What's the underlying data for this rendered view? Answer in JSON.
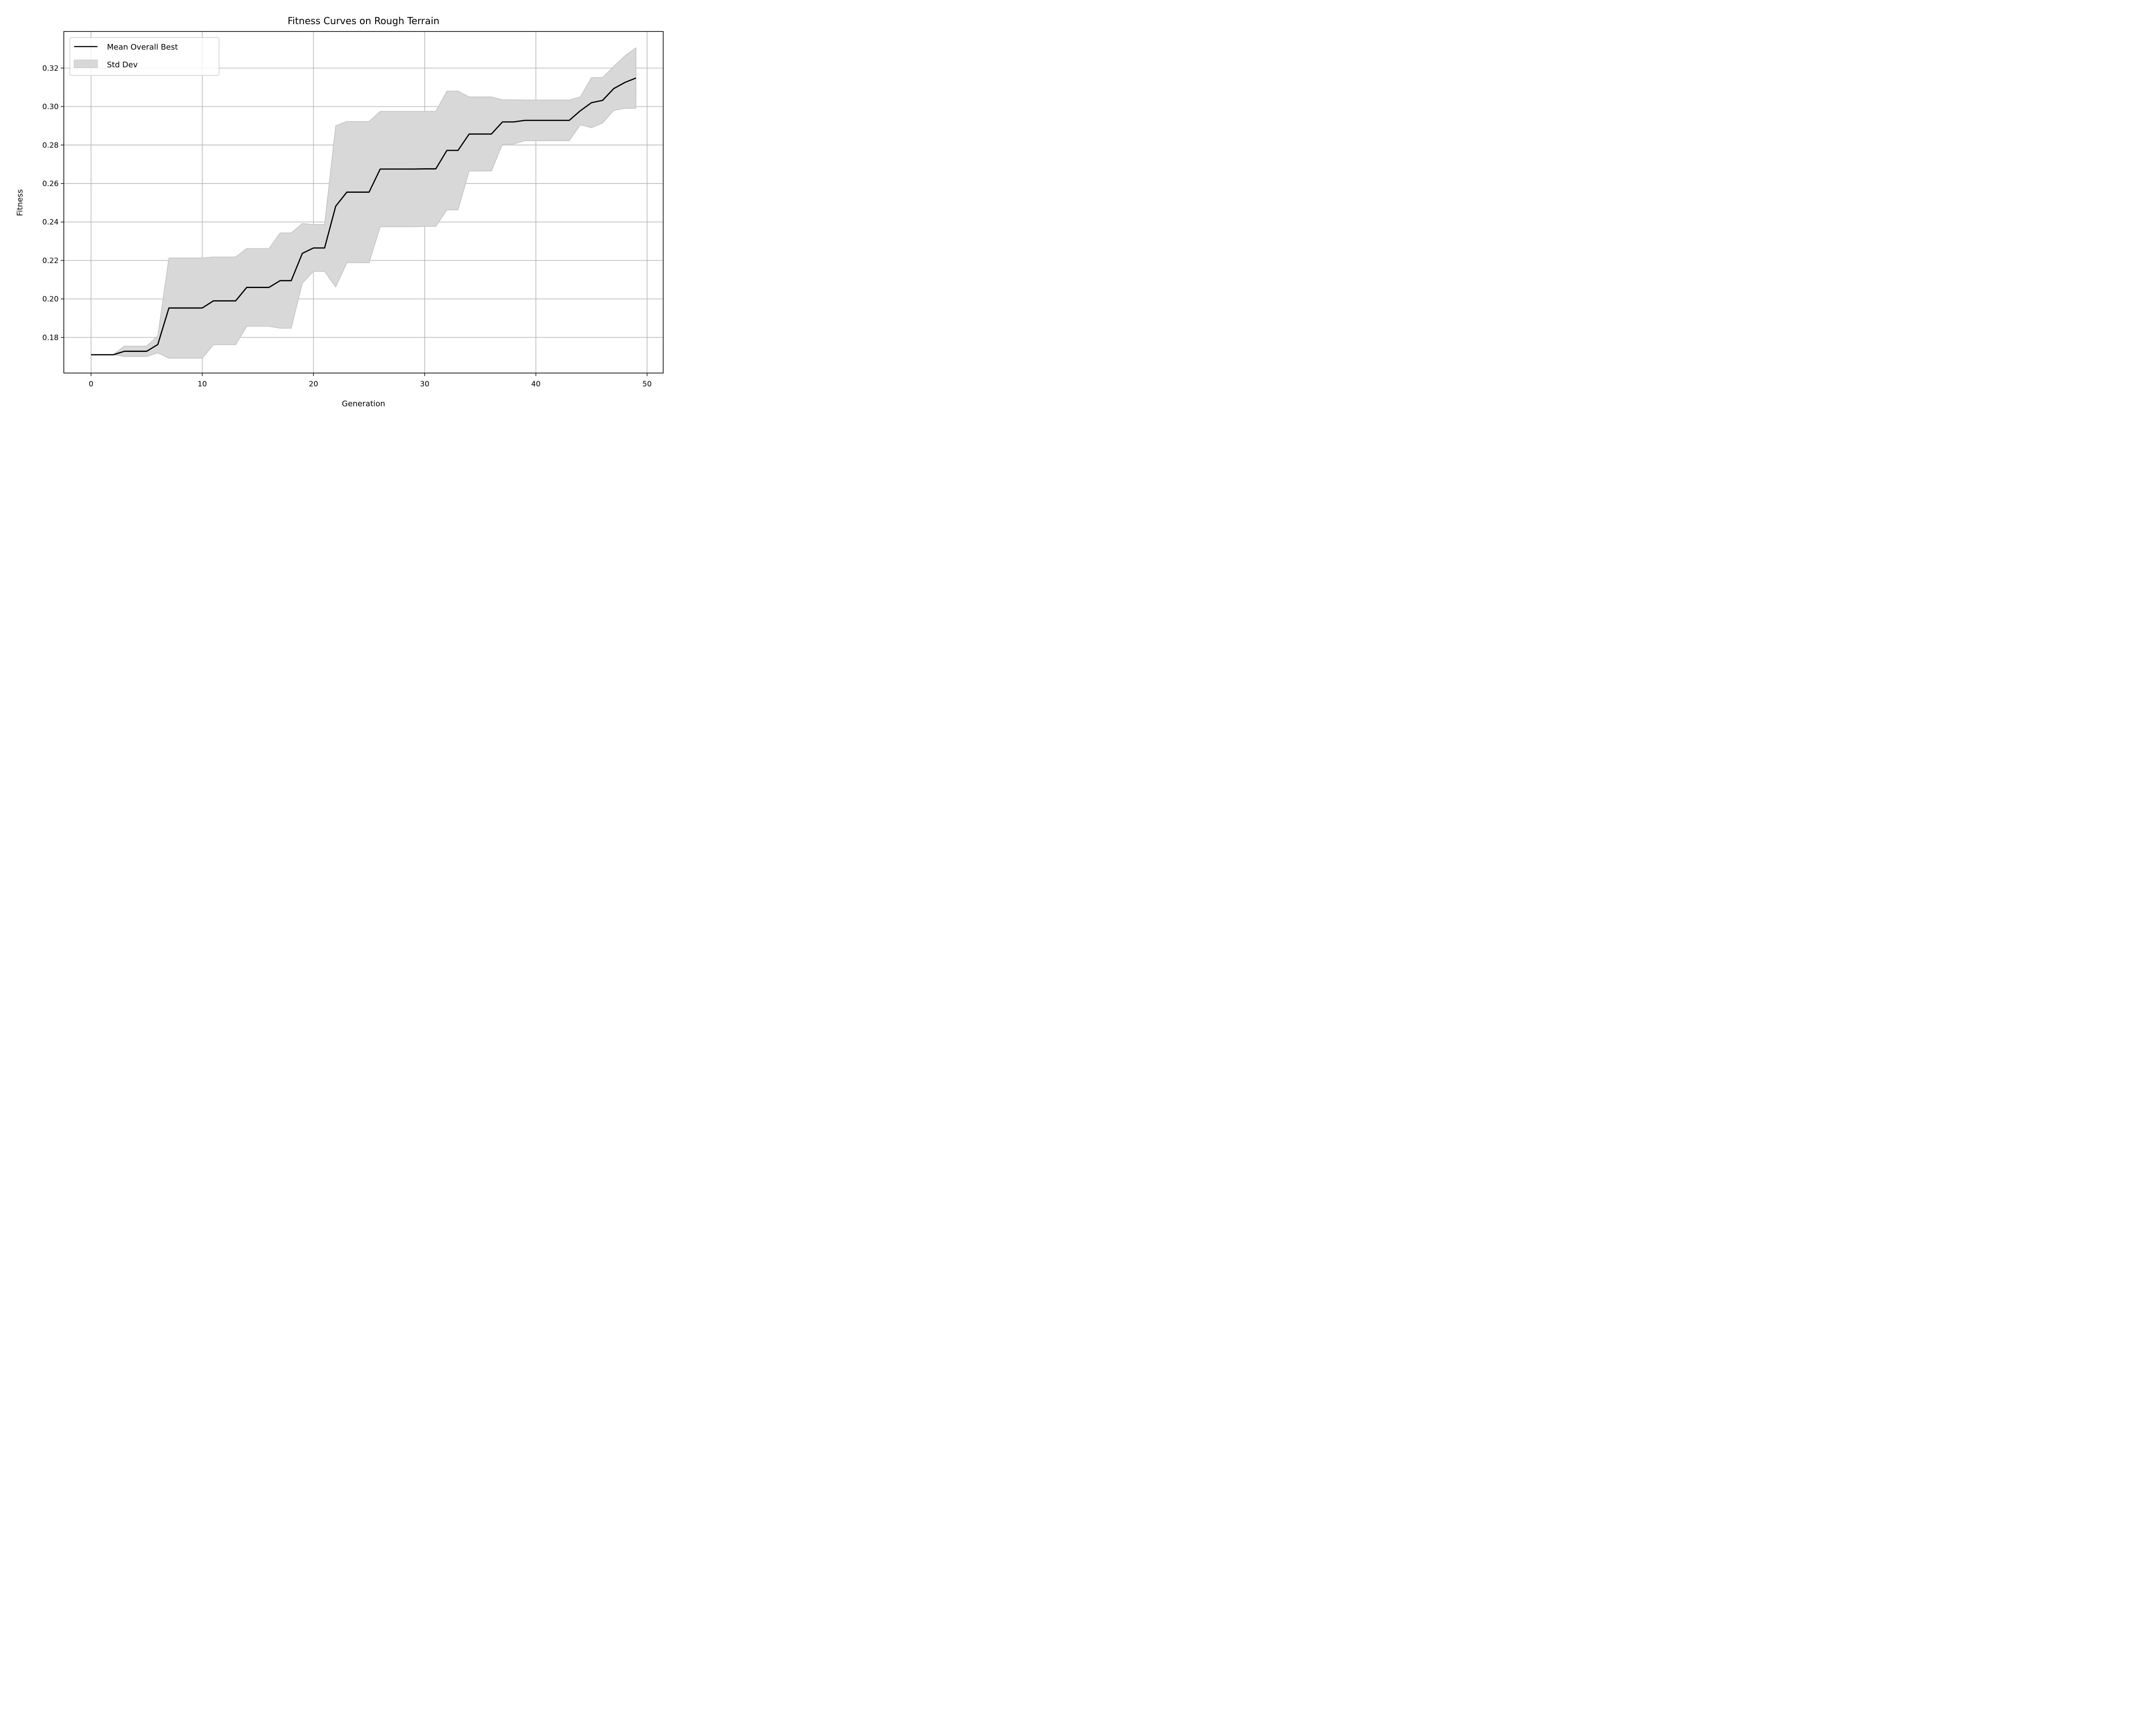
{
  "chart_data": {
    "type": "line",
    "title": "Fitness Curves on Rough Terrain",
    "xlabel": "Generation",
    "ylabel": "Fitness",
    "xlim": [
      -2.45,
      51.45
    ],
    "ylim": [
      0.1615,
      0.339
    ],
    "xticks": [
      0,
      10,
      20,
      30,
      40,
      50
    ],
    "yticks": [
      0.18,
      0.2,
      0.22,
      0.24,
      0.26,
      0.28,
      0.3,
      0.32
    ],
    "xtick_labels": [
      "0",
      "10",
      "20",
      "30",
      "40",
      "50"
    ],
    "ytick_labels": [
      "0.18",
      "0.20",
      "0.22",
      "0.24",
      "0.26",
      "0.28",
      "0.30",
      "0.32"
    ],
    "grid": true,
    "legend_position": "top-left",
    "x": [
      0,
      1,
      2,
      3,
      4,
      5,
      6,
      7,
      8,
      9,
      10,
      11,
      12,
      13,
      14,
      15,
      16,
      17,
      18,
      19,
      20,
      21,
      22,
      23,
      24,
      25,
      26,
      27,
      28,
      29,
      30,
      31,
      32,
      33,
      34,
      35,
      36,
      37,
      38,
      39,
      40,
      41,
      42,
      43,
      44,
      45,
      46,
      47,
      48,
      49
    ],
    "series": [
      {
        "name": "Mean Overall Best",
        "color": "#000000",
        "values": [
          0.171,
          0.171,
          0.171,
          0.1728,
          0.1728,
          0.1728,
          0.1763,
          0.1953,
          0.1953,
          0.1953,
          0.1953,
          0.199,
          0.199,
          0.199,
          0.206,
          0.206,
          0.206,
          0.2095,
          0.2095,
          0.2237,
          0.2265,
          0.2265,
          0.2482,
          0.2555,
          0.2555,
          0.2555,
          0.2675,
          0.2675,
          0.2675,
          0.2675,
          0.2676,
          0.2676,
          0.2772,
          0.2772,
          0.2857,
          0.2857,
          0.2857,
          0.292,
          0.292,
          0.2928,
          0.2928,
          0.2928,
          0.2928,
          0.2928,
          0.2978,
          0.302,
          0.3032,
          0.3093,
          0.3125,
          0.3148
        ]
      },
      {
        "name": "Std Dev",
        "color": "#d8d8d8",
        "edge_color": "#bdbdbd",
        "upper": [
          0.171,
          0.171,
          0.171,
          0.1755,
          0.1755,
          0.1755,
          0.1808,
          0.2213,
          0.2213,
          0.2213,
          0.2213,
          0.2218,
          0.2218,
          0.2218,
          0.2262,
          0.2262,
          0.2262,
          0.2343,
          0.2343,
          0.2392,
          0.2387,
          0.2387,
          0.29,
          0.2922,
          0.2922,
          0.2922,
          0.2975,
          0.2975,
          0.2975,
          0.2975,
          0.2975,
          0.2975,
          0.308,
          0.308,
          0.305,
          0.305,
          0.305,
          0.3035,
          0.3035,
          0.3034,
          0.3034,
          0.3034,
          0.3034,
          0.3034,
          0.305,
          0.315,
          0.3151,
          0.3208,
          0.3263,
          0.3305
        ],
        "lower": [
          0.171,
          0.171,
          0.171,
          0.1701,
          0.1701,
          0.1701,
          0.172,
          0.1692,
          0.1692,
          0.1692,
          0.1692,
          0.1762,
          0.1762,
          0.1762,
          0.1858,
          0.1858,
          0.1858,
          0.1848,
          0.1848,
          0.2082,
          0.2143,
          0.2143,
          0.2062,
          0.2188,
          0.2188,
          0.2188,
          0.2375,
          0.2375,
          0.2375,
          0.2375,
          0.2377,
          0.2377,
          0.2463,
          0.2463,
          0.2665,
          0.2665,
          0.2665,
          0.2805,
          0.2805,
          0.2822,
          0.2822,
          0.2822,
          0.2822,
          0.2822,
          0.2905,
          0.289,
          0.2914,
          0.298,
          0.299,
          0.2991
        ]
      }
    ]
  }
}
